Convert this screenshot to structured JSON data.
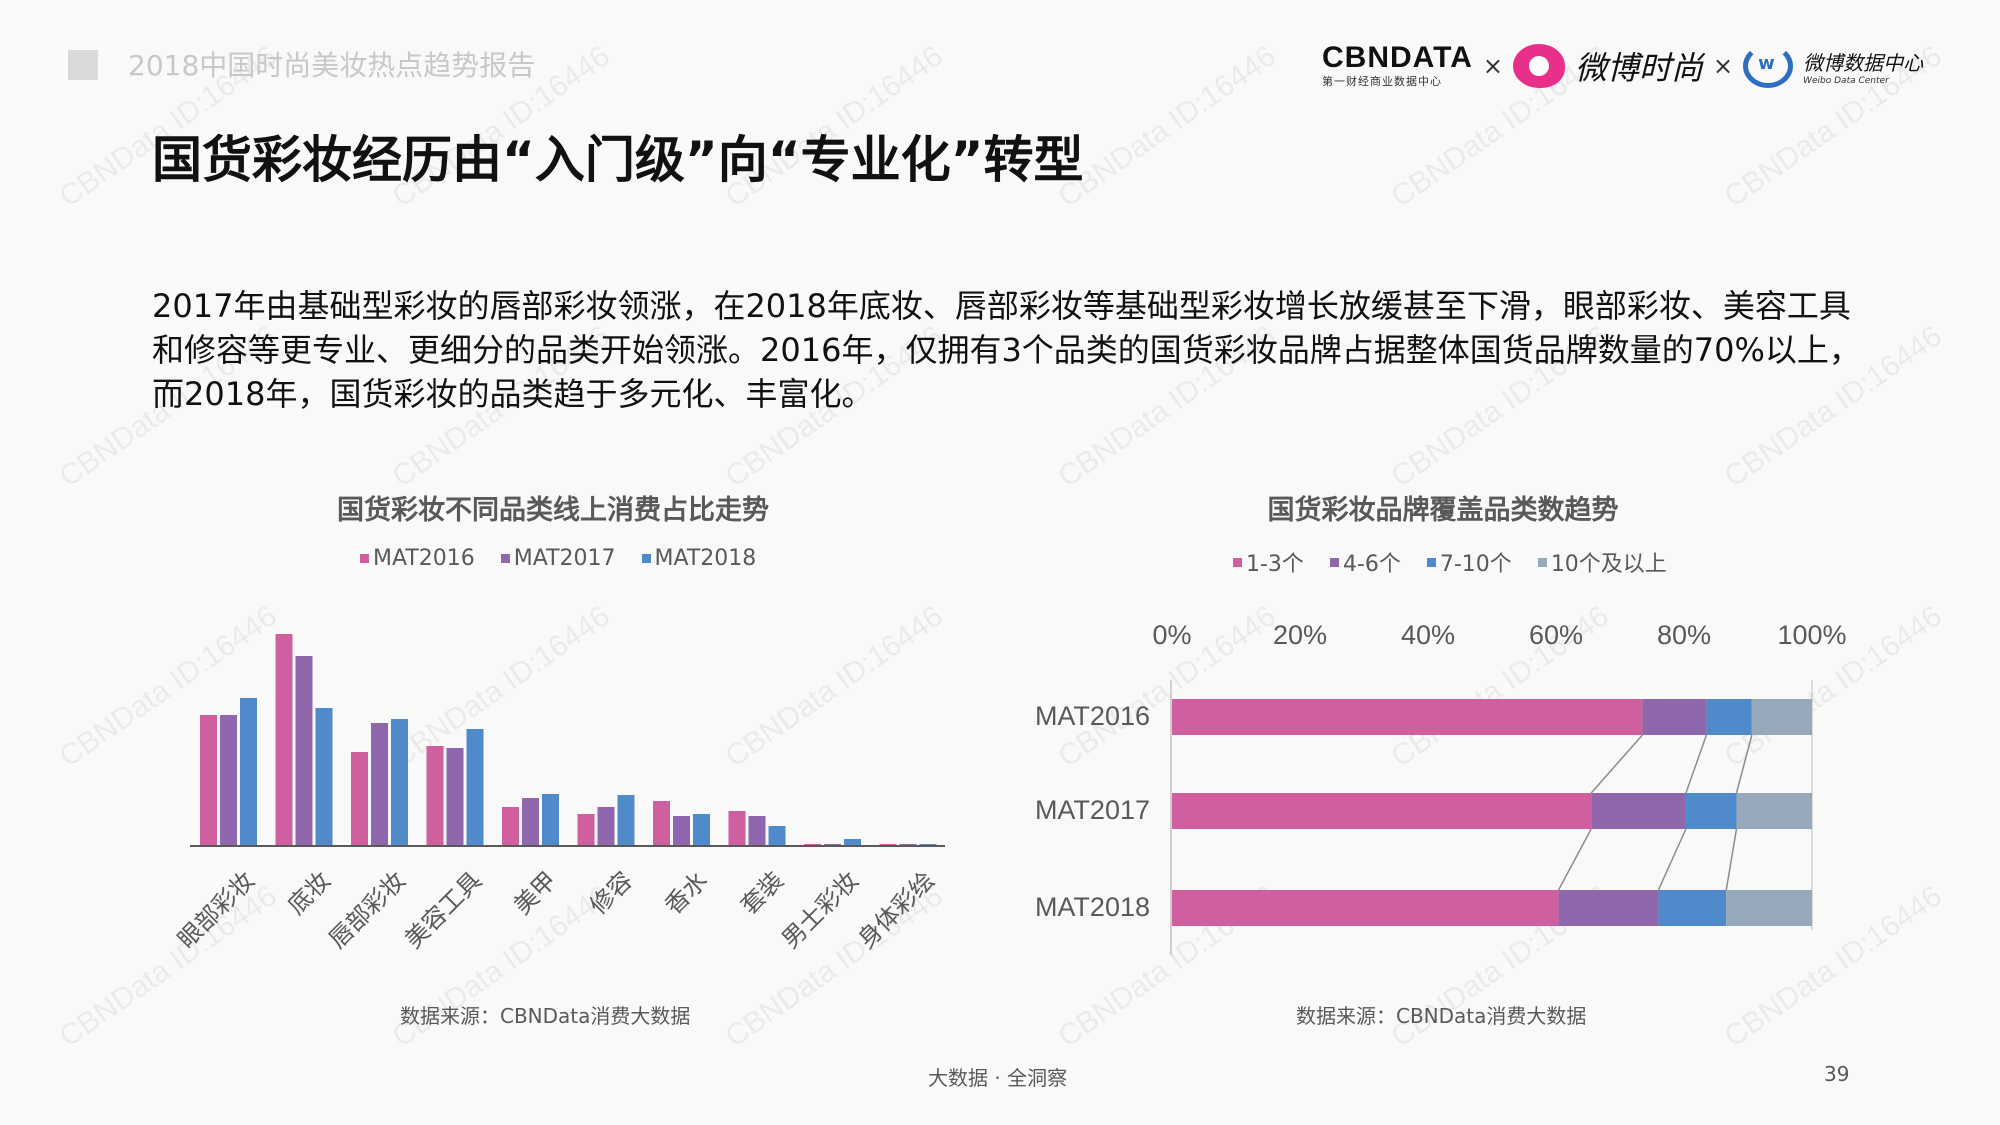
{
  "header": {
    "report_title": "2018中国时尚美妆热点趋势报告",
    "logos": {
      "cbndata_main": "CBNDATA",
      "cbndata_sub": "第一财经商业数据中心",
      "times1": "×",
      "weibo_fashion": "微博时尚",
      "times2": "×",
      "weibo_data_cn": "微博数据中心",
      "weibo_data_en": "Weibo Data Center"
    }
  },
  "page": {
    "title": "国货彩妆经历由“入门级”向“专业化”转型",
    "paragraph": "2017年由基础型彩妆的唇部彩妆领涨，在2018年底妆、唇部彩妆等基础型彩妆增长放缓甚至下滑，眼部彩妆、美容工具和修容等更专业、更细分的品类开始领涨。2016年，仅拥有3个品类的国货彩妆品牌占据整体国货品牌数量的70%以上，而2018年，国货彩妆的品类趋于多元化、丰富化。"
  },
  "colors": {
    "pink": "#d05fa0",
    "purple": "#9067ad",
    "blue": "#4f8bcb",
    "gray": "#98a8bb"
  },
  "chart_data": [
    {
      "type": "bar",
      "title": "国货彩妆不同品类线上消费占比走势",
      "xlabel": "",
      "ylabel": "",
      "y_axis_shown": false,
      "grid": false,
      "legend_position": "top",
      "categories": [
        "眼部彩妆",
        "底妆",
        "唇部彩妆",
        "美容工具",
        "美甲",
        "修容",
        "香水",
        "套装",
        "男士彩妆",
        "身体彩绘"
      ],
      "series": [
        {
          "name": "MAT2016",
          "color": "#d05fa0",
          "values": [
            131,
            212,
            94,
            100,
            39,
            32,
            45,
            35,
            2,
            2
          ]
        },
        {
          "name": "MAT2017",
          "color": "#9067ad",
          "values": [
            131,
            190,
            123,
            98,
            48,
            39,
            30,
            30,
            2,
            2
          ]
        },
        {
          "name": "MAT2018",
          "color": "#4f8bcb",
          "values": [
            148,
            138,
            127,
            117,
            52,
            51,
            32,
            20,
            7,
            2
          ]
        }
      ],
      "values_note": "relative bar heights (no axis scale shown)",
      "source": "数据来源：CBNData消费大数据"
    },
    {
      "type": "bar",
      "orientation": "horizontal",
      "stacked": "100%",
      "title": "国货彩妆品牌覆盖品类数趋势",
      "xlabel": "",
      "ylabel": "",
      "xlim": [
        0,
        100
      ],
      "x_ticks": [
        "0%",
        "20%",
        "40%",
        "60%",
        "80%",
        "100%"
      ],
      "legend_position": "top",
      "categories": [
        "MAT2016",
        "MAT2017",
        "MAT2018"
      ],
      "series": [
        {
          "name": "1-3个",
          "color": "#d05fa0",
          "values": [
            73.5,
            65.5,
            60.4
          ]
        },
        {
          "name": "4-6个",
          "color": "#9067ad",
          "values": [
            10.0,
            14.8,
            15.6
          ]
        },
        {
          "name": "7-10个",
          "color": "#4f8bcb",
          "values": [
            7.1,
            7.9,
            10.6
          ]
        },
        {
          "name": "10个及以上",
          "color": "#98a8bb",
          "values": [
            9.4,
            11.8,
            13.4
          ]
        }
      ],
      "series_lines": true,
      "source": "数据来源：CBNData消费大数据"
    }
  ],
  "footer": {
    "tagline": "大数据 · 全洞察",
    "page_number": "39"
  },
  "watermark": "CBNData ID:16446"
}
